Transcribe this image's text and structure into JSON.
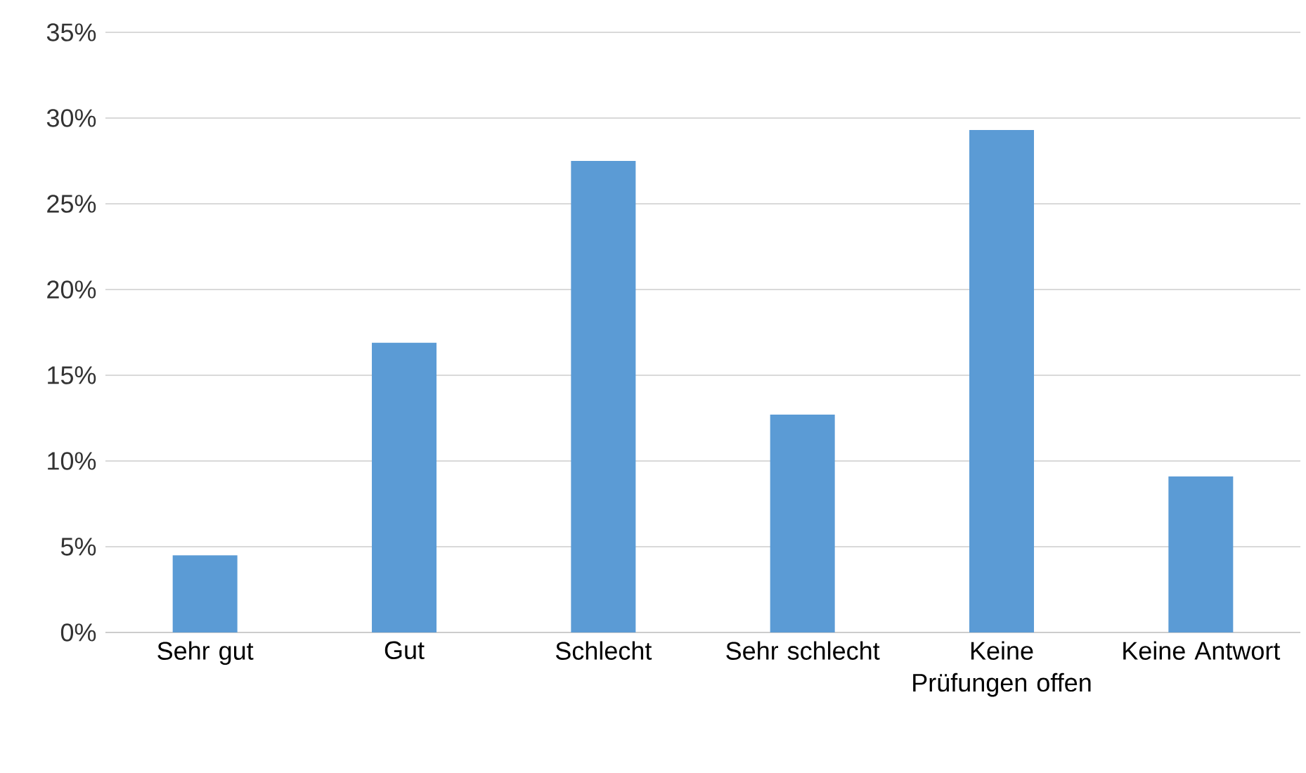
{
  "chart_data": {
    "type": "bar",
    "categories": [
      "Sehr gut",
      "Gut",
      "Schlecht",
      "Sehr schlecht",
      "Keine Prüfungen offen",
      "Keine Antwort"
    ],
    "values": [
      4.5,
      16.9,
      27.5,
      12.7,
      29.3,
      9.1
    ],
    "color": "#5b9bd5",
    "ylim": [
      0,
      35
    ],
    "yticks": [
      {
        "value": 0,
        "label": "0%"
      },
      {
        "value": 5,
        "label": "5%"
      },
      {
        "value": 10,
        "label": "10%"
      },
      {
        "value": 15,
        "label": "15%"
      },
      {
        "value": 20,
        "label": "20%"
      },
      {
        "value": 25,
        "label": "25%"
      },
      {
        "value": 30,
        "label": "30%"
      },
      {
        "value": 35,
        "label": "35%"
      }
    ],
    "grid": "y"
  }
}
